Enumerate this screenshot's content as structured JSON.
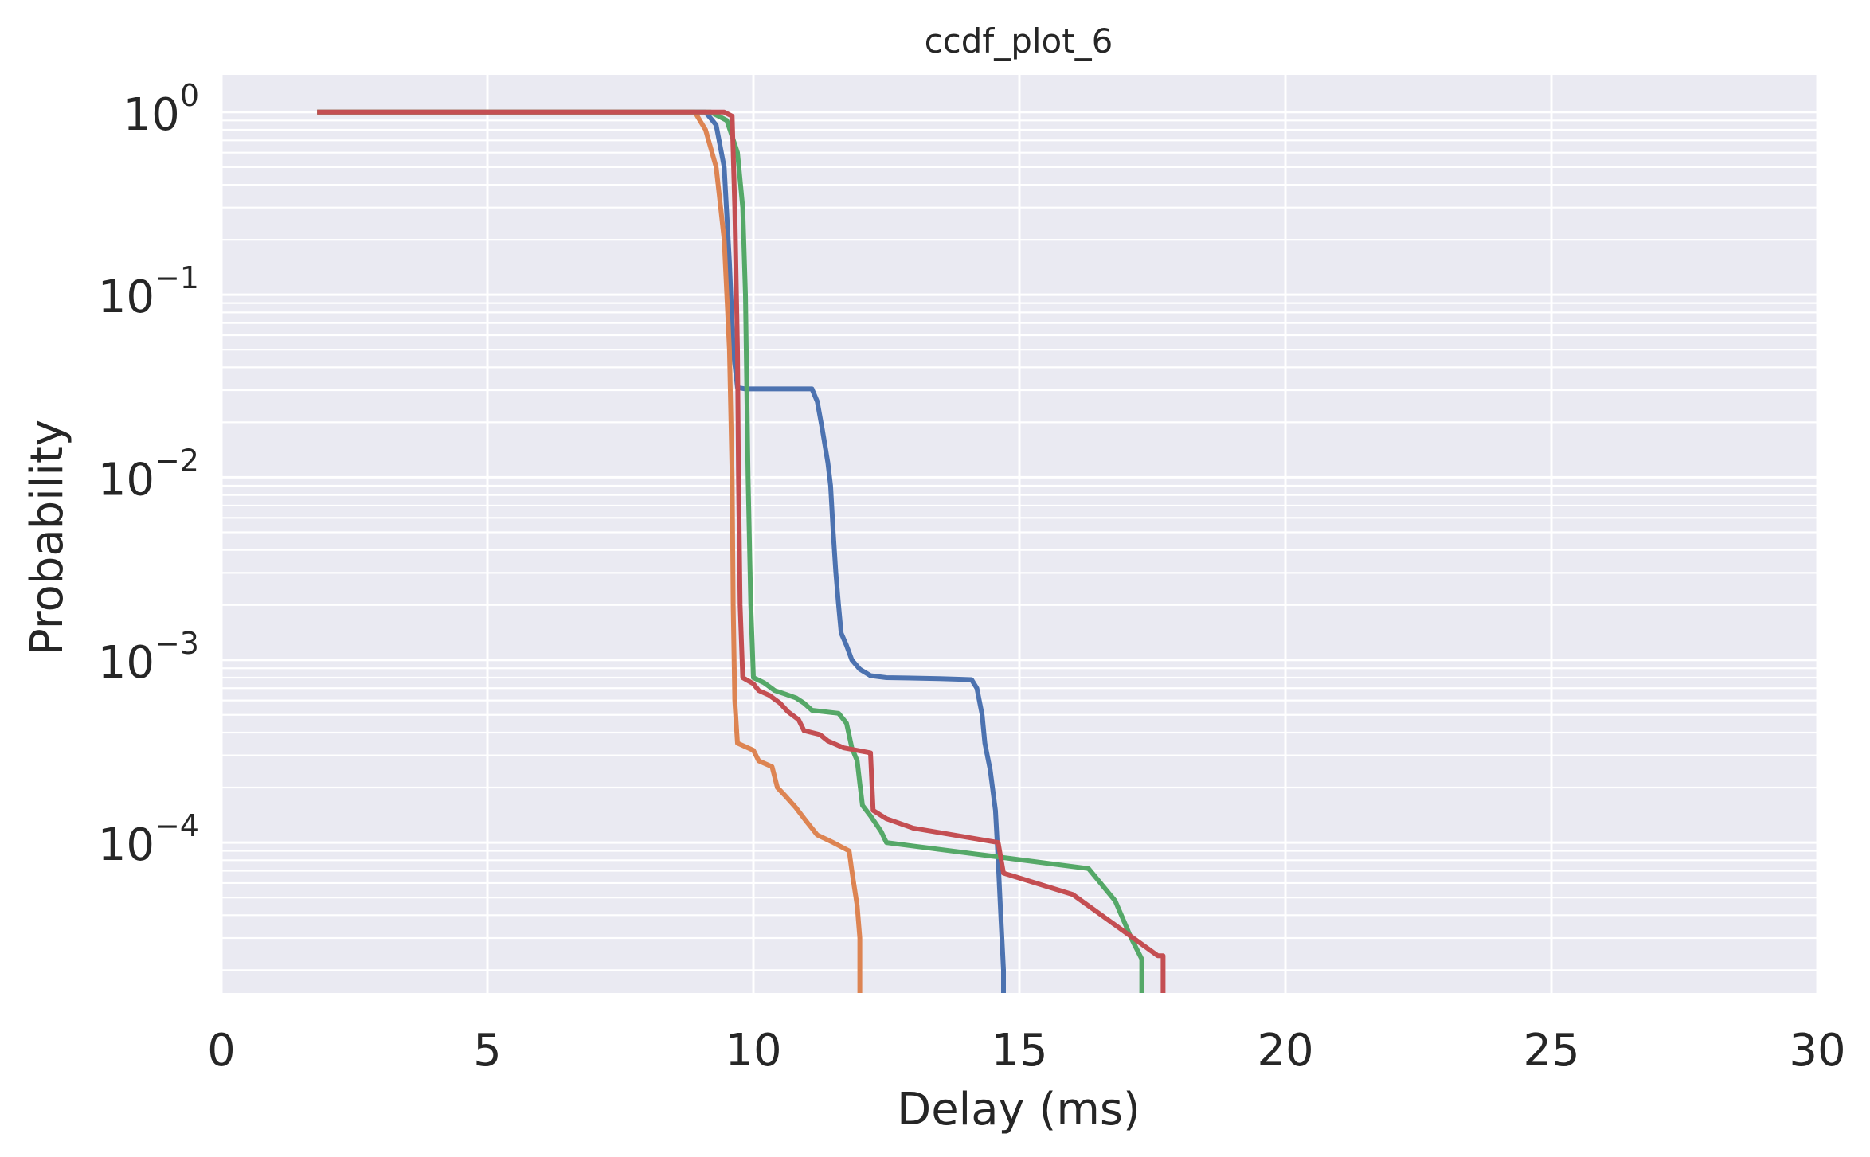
{
  "chart_data": {
    "type": "line",
    "title": "ccdf_plot_6",
    "xlabel": "Delay (ms)",
    "ylabel": "Probability",
    "xlim": [
      0,
      30
    ],
    "ylim": [
      1.5e-05,
      1.6
    ],
    "yscale": "log",
    "grid": true,
    "legend": "none",
    "x_ticks": [
      {
        "value": 0,
        "label": "0"
      },
      {
        "value": 5,
        "label": "5"
      },
      {
        "value": 10,
        "label": "10"
      },
      {
        "value": 15,
        "label": "15"
      },
      {
        "value": 20,
        "label": "20"
      },
      {
        "value": 25,
        "label": "25"
      },
      {
        "value": 30,
        "label": "30"
      }
    ],
    "y_ticks": [
      {
        "value": 1,
        "base": "10",
        "exp": "0"
      },
      {
        "value": 0.1,
        "base": "10",
        "exp": "−1"
      },
      {
        "value": 0.01,
        "base": "10",
        "exp": "−2"
      },
      {
        "value": 0.001,
        "base": "10",
        "exp": "−3"
      },
      {
        "value": 0.0001,
        "base": "10",
        "exp": "−4"
      }
    ],
    "colors": {
      "background": "#eaeaf2",
      "grid": "#ffffff",
      "text": "#262626"
    },
    "series": [
      {
        "color": "#4c72b0",
        "points": [
          [
            1.8,
            1.0
          ],
          [
            9.1,
            1.0
          ],
          [
            9.3,
            0.85
          ],
          [
            9.45,
            0.5
          ],
          [
            9.55,
            0.15
          ],
          [
            9.62,
            0.05
          ],
          [
            9.7,
            0.031
          ],
          [
            9.85,
            0.0305
          ],
          [
            11.1,
            0.0305
          ],
          [
            11.2,
            0.026
          ],
          [
            11.3,
            0.018
          ],
          [
            11.4,
            0.012
          ],
          [
            11.45,
            0.009
          ],
          [
            11.5,
            0.005
          ],
          [
            11.55,
            0.003
          ],
          [
            11.6,
            0.002
          ],
          [
            11.65,
            0.0014
          ],
          [
            11.75,
            0.0012
          ],
          [
            11.85,
            0.001
          ],
          [
            12.0,
            0.00089
          ],
          [
            12.2,
            0.00082
          ],
          [
            12.5,
            0.0008
          ],
          [
            13.5,
            0.00079
          ],
          [
            14.1,
            0.00078
          ],
          [
            14.2,
            0.0007
          ],
          [
            14.3,
            0.0005
          ],
          [
            14.35,
            0.00035
          ],
          [
            14.45,
            0.00025
          ],
          [
            14.55,
            0.00015
          ],
          [
            14.6,
            8e-05
          ],
          [
            14.65,
            4e-05
          ],
          [
            14.7,
            2e-05
          ],
          [
            14.7,
            1.5e-05
          ]
        ]
      },
      {
        "color": "#dd8452",
        "points": [
          [
            1.8,
            1.0
          ],
          [
            8.9,
            1.0
          ],
          [
            9.1,
            0.8
          ],
          [
            9.3,
            0.5
          ],
          [
            9.45,
            0.2
          ],
          [
            9.55,
            0.05
          ],
          [
            9.6,
            0.01
          ],
          [
            9.62,
            0.002
          ],
          [
            9.65,
            0.0006
          ],
          [
            9.7,
            0.00035
          ],
          [
            10.0,
            0.00032
          ],
          [
            10.1,
            0.00028
          ],
          [
            10.35,
            0.00026
          ],
          [
            10.45,
            0.0002
          ],
          [
            10.6,
            0.00018
          ],
          [
            10.8,
            0.000155
          ],
          [
            11.0,
            0.00013
          ],
          [
            11.2,
            0.00011
          ],
          [
            11.5,
            0.0001
          ],
          [
            11.8,
            9e-05
          ],
          [
            11.85,
            7e-05
          ],
          [
            11.95,
            4.5e-05
          ],
          [
            12.0,
            3e-05
          ],
          [
            12.0,
            1.5e-05
          ]
        ]
      },
      {
        "color": "#55a868",
        "points": [
          [
            1.8,
            1.0
          ],
          [
            9.2,
            1.0
          ],
          [
            9.5,
            0.9
          ],
          [
            9.7,
            0.6
          ],
          [
            9.8,
            0.3
          ],
          [
            9.85,
            0.1
          ],
          [
            9.9,
            0.01
          ],
          [
            9.95,
            0.002
          ],
          [
            10.0,
            0.0008
          ],
          [
            10.2,
            0.00075
          ],
          [
            10.4,
            0.00068
          ],
          [
            10.6,
            0.00065
          ],
          [
            10.8,
            0.00062
          ],
          [
            10.95,
            0.00058
          ],
          [
            11.1,
            0.00053
          ],
          [
            11.6,
            0.00051
          ],
          [
            11.75,
            0.00045
          ],
          [
            11.85,
            0.00033
          ],
          [
            11.95,
            0.00028
          ],
          [
            12.0,
            0.00021
          ],
          [
            12.05,
            0.00016
          ],
          [
            12.2,
            0.00014
          ],
          [
            12.4,
            0.000115
          ],
          [
            12.5,
            0.0001
          ],
          [
            16.3,
            7.2e-05
          ],
          [
            16.8,
            4.8e-05
          ],
          [
            17.1,
            3e-05
          ],
          [
            17.3,
            2.3e-05
          ],
          [
            17.3,
            1.5e-05
          ]
        ]
      },
      {
        "color": "#c44e52",
        "points": [
          [
            1.8,
            1.0
          ],
          [
            9.45,
            1.0
          ],
          [
            9.6,
            0.95
          ],
          [
            9.65,
            0.3
          ],
          [
            9.7,
            0.05
          ],
          [
            9.72,
            0.01
          ],
          [
            9.75,
            0.002
          ],
          [
            9.8,
            0.0008
          ],
          [
            10.0,
            0.00074
          ],
          [
            10.1,
            0.00068
          ],
          [
            10.3,
            0.00064
          ],
          [
            10.5,
            0.00058
          ],
          [
            10.65,
            0.00052
          ],
          [
            10.85,
            0.00047
          ],
          [
            10.95,
            0.00041
          ],
          [
            11.25,
            0.00039
          ],
          [
            11.4,
            0.00036
          ],
          [
            11.7,
            0.00033
          ],
          [
            12.2,
            0.00031
          ],
          [
            12.25,
            0.00015
          ],
          [
            12.5,
            0.000135
          ],
          [
            13.0,
            0.00012
          ],
          [
            14.6,
            0.0001
          ],
          [
            14.7,
            6.8e-05
          ],
          [
            16.0,
            5.2e-05
          ],
          [
            17.6,
            2.4e-05
          ],
          [
            17.7,
            2.4e-05
          ],
          [
            17.7,
            1.5e-05
          ]
        ]
      }
    ]
  }
}
